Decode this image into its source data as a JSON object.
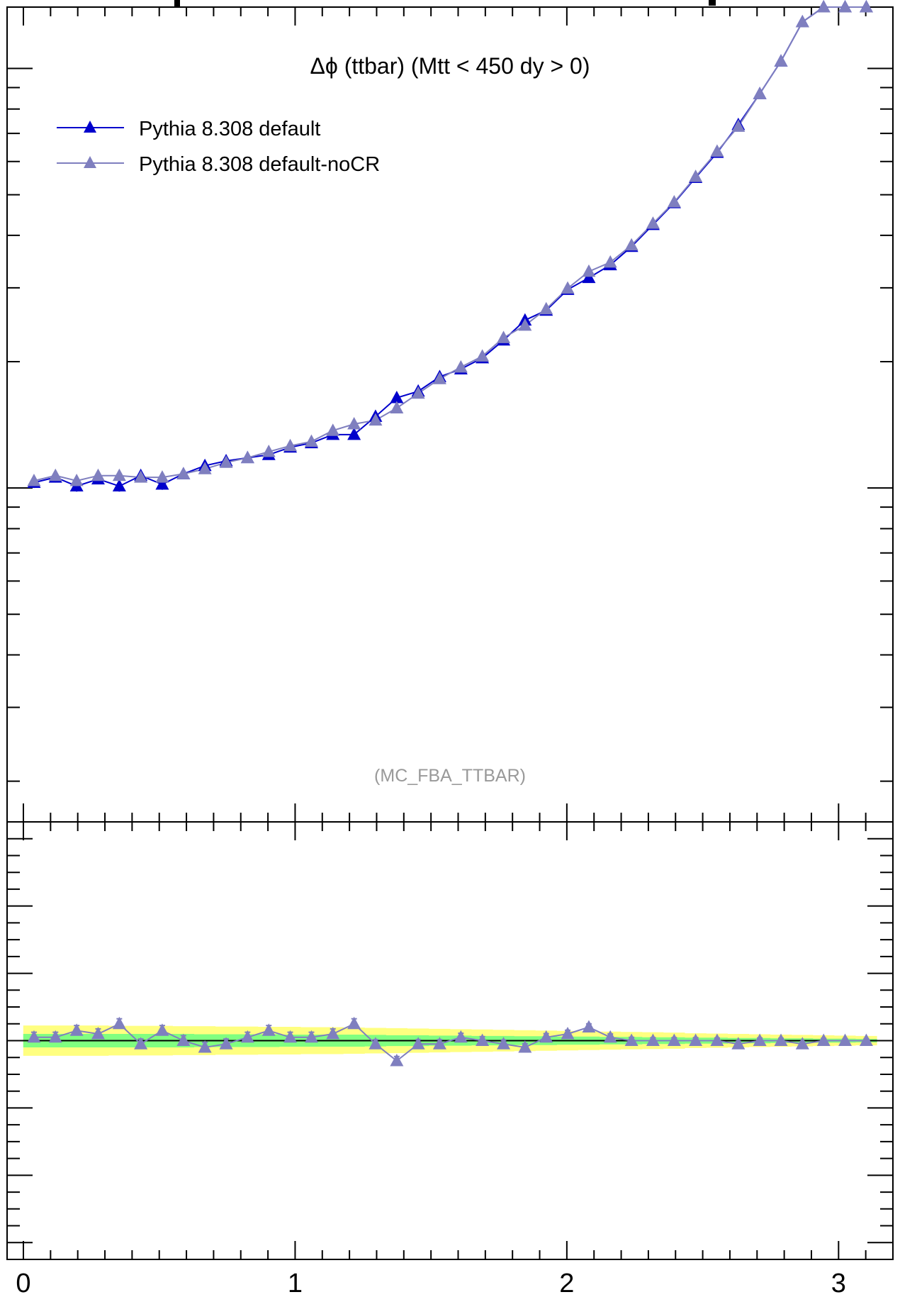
{
  "chart_data": {
    "type": "line",
    "title": "Δϕ (ttbar) (Mtt < 450 dy > 0)",
    "watermark": "(MC_FBA_TTBAR)",
    "xlabel": "",
    "ylabel": "",
    "xlim": [
      -0.06,
      3.2
    ],
    "x_ticks": [
      "0",
      "1",
      "2",
      "3"
    ],
    "x_tick_values": [
      0,
      1,
      2,
      3
    ],
    "main_panel": {
      "ylim": [
        0.0016,
        0.14
      ],
      "log_y": true
    },
    "ratio_panel": {
      "ylim": [
        0.35,
        1.65
      ],
      "reference": 1.0
    },
    "legend_position": "top-left",
    "x": [
      0.039,
      0.118,
      0.196,
      0.275,
      0.353,
      0.432,
      0.511,
      0.589,
      0.668,
      0.746,
      0.825,
      0.903,
      0.982,
      1.06,
      1.139,
      1.217,
      1.296,
      1.374,
      1.453,
      1.532,
      1.61,
      1.689,
      1.767,
      1.846,
      1.924,
      2.003,
      2.081,
      2.16,
      2.238,
      2.317,
      2.395,
      2.474,
      2.553,
      2.631,
      2.71,
      2.788,
      2.867,
      2.945,
      3.024,
      3.102
    ],
    "series": [
      {
        "name": "Pythia 8.308 default",
        "color": "#0000cc",
        "marker": "triangle",
        "values": [
          0.0103,
          0.0106,
          0.0101,
          0.0105,
          0.0101,
          0.0107,
          0.0102,
          0.0108,
          0.0113,
          0.0116,
          0.0118,
          0.012,
          0.0125,
          0.0128,
          0.0134,
          0.0134,
          0.0148,
          0.0164,
          0.017,
          0.0184,
          0.0192,
          0.0204,
          0.0225,
          0.0251,
          0.0265,
          0.0297,
          0.0317,
          0.034,
          0.0376,
          0.0424,
          0.0478,
          0.0549,
          0.063,
          0.0734,
          0.087,
          0.104,
          0.129,
          0.16,
          0.202,
          0.262
        ],
        "errors": [
          0.0003,
          0.0003,
          0.0003,
          0.0003,
          0.0003,
          0.0003,
          0.0003,
          0.0003,
          0.0003,
          0.0003,
          0.0003,
          0.0003,
          0.0003,
          0.0003,
          0.0003,
          0.0003,
          0.0004,
          0.0004,
          0.0004,
          0.0004,
          0.0004,
          0.0005,
          0.0005,
          0.0005,
          0.0005,
          0.0006,
          0.0006,
          0.0006,
          0.0007,
          0.0007,
          0.0008,
          0.0009,
          0.001,
          0.0011,
          0.0012,
          0.0014,
          0.0016,
          0.0018,
          0.0021,
          0.0024
        ]
      },
      {
        "name": "Pythia 8.308 default-noCR",
        "color": "#7f7fbf",
        "marker": "triangle",
        "values": [
          0.0104,
          0.0107,
          0.0104,
          0.0107,
          0.0107,
          0.0106,
          0.0106,
          0.0108,
          0.0111,
          0.0115,
          0.0118,
          0.0122,
          0.0126,
          0.0129,
          0.0137,
          0.0142,
          0.0145,
          0.0155,
          0.0168,
          0.0182,
          0.0194,
          0.0206,
          0.0228,
          0.0244,
          0.0267,
          0.0299,
          0.0328,
          0.0345,
          0.0379,
          0.0427,
          0.048,
          0.0552,
          0.0634,
          0.0727,
          0.087,
          0.104,
          0.129,
          0.1612,
          0.203,
          0.2627
        ],
        "errors": [
          0.0003,
          0.0003,
          0.0003,
          0.0003,
          0.0003,
          0.0003,
          0.0003,
          0.0003,
          0.0003,
          0.0003,
          0.0003,
          0.0003,
          0.0003,
          0.0003,
          0.0003,
          0.0003,
          0.0004,
          0.0004,
          0.0004,
          0.0004,
          0.0004,
          0.0005,
          0.0005,
          0.0005,
          0.0005,
          0.0006,
          0.0006,
          0.0006,
          0.0007,
          0.0007,
          0.0008,
          0.0009,
          0.001,
          0.0011,
          0.0012,
          0.0014,
          0.0016,
          0.0018,
          0.0021,
          0.0024
        ]
      }
    ],
    "ratio_values": [
      1.01,
      1.01,
      1.03,
      1.02,
      1.05,
      0.99,
      1.03,
      1.0,
      0.98,
      0.99,
      1.01,
      1.03,
      1.01,
      1.01,
      1.02,
      1.05,
      0.99,
      0.94,
      0.99,
      0.99,
      1.01,
      1.0,
      0.99,
      0.98,
      1.01,
      1.02,
      1.04,
      1.01,
      1.0,
      1.0,
      1.0,
      1.0,
      1.0,
      0.99,
      1.0,
      1.0,
      0.99,
      1.0,
      1.0,
      1.0
    ],
    "ratio_errors": [
      0.015,
      0.015,
      0.015,
      0.015,
      0.015,
      0.015,
      0.015,
      0.015,
      0.015,
      0.015,
      0.015,
      0.015,
      0.015,
      0.015,
      0.015,
      0.015,
      0.013,
      0.013,
      0.013,
      0.013,
      0.012,
      0.012,
      0.012,
      0.011,
      0.011,
      0.011,
      0.01,
      0.01,
      0.01,
      0.009,
      0.009,
      0.009,
      0.008,
      0.008,
      0.008,
      0.007,
      0.007,
      0.007,
      0.006,
      0.006
    ],
    "band_colors": {
      "inner": "#80ff80",
      "outer": "#ffff80"
    },
    "ratio_band_inner": [
      0.02,
      0.02,
      0.02,
      0.02,
      0.02,
      0.02,
      0.02,
      0.02,
      0.019,
      0.019,
      0.019,
      0.019,
      0.018,
      0.018,
      0.018,
      0.018,
      0.017,
      0.016,
      0.016,
      0.015,
      0.015,
      0.014,
      0.014,
      0.013,
      0.013,
      0.012,
      0.012,
      0.011,
      0.011,
      0.01,
      0.01,
      0.009,
      0.009,
      0.008,
      0.008,
      0.007,
      0.007,
      0.006,
      0.006,
      0.005
    ],
    "ratio_band_outer": [
      0.045,
      0.045,
      0.045,
      0.045,
      0.044,
      0.044,
      0.044,
      0.043,
      0.043,
      0.042,
      0.042,
      0.041,
      0.041,
      0.04,
      0.04,
      0.039,
      0.038,
      0.037,
      0.036,
      0.035,
      0.034,
      0.033,
      0.032,
      0.031,
      0.03,
      0.029,
      0.028,
      0.027,
      0.026,
      0.025,
      0.024,
      0.022,
      0.021,
      0.02,
      0.019,
      0.018,
      0.017,
      0.016,
      0.015,
      0.014
    ]
  }
}
